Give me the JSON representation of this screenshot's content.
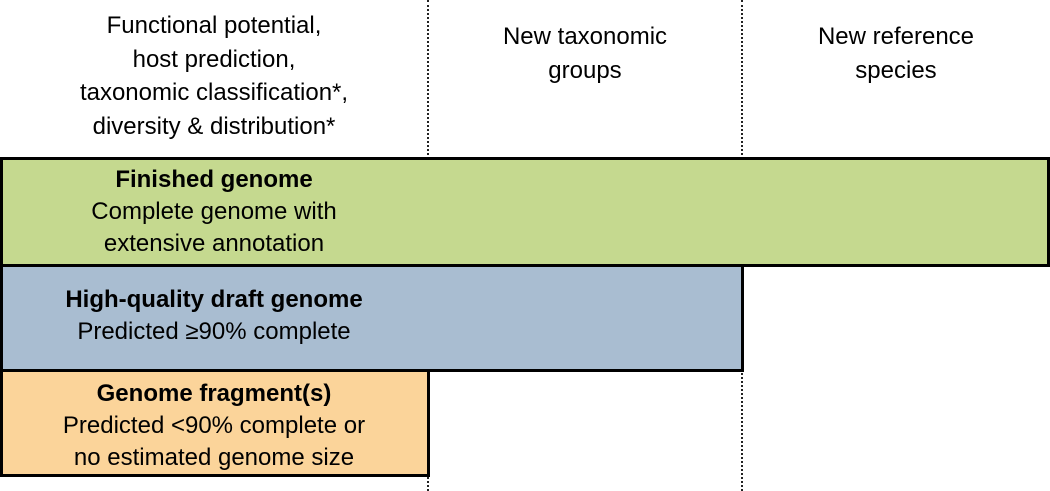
{
  "headers": {
    "col1": [
      "Functional potential,",
      "host prediction,",
      "taxonomic classification*,",
      "diversity & distribution*"
    ],
    "col2": [
      "New taxonomic",
      "groups"
    ],
    "col3": [
      "New reference",
      "species"
    ]
  },
  "tiers": [
    {
      "title": "Finished genome",
      "lines": [
        "Complete genome with",
        "extensive annotation"
      ],
      "color": "#c5d98f"
    },
    {
      "title": "High-quality draft genome",
      "lines": [
        "Predicted ≥90% complete"
      ],
      "color": "#a9bdd1"
    },
    {
      "title": "Genome fragment(s)",
      "lines": [
        "Predicted <90% complete or",
        "no estimated genome size"
      ],
      "color": "#fbd49a"
    }
  ],
  "colors": {
    "dotted_line": "#222222",
    "border": "#000000"
  }
}
